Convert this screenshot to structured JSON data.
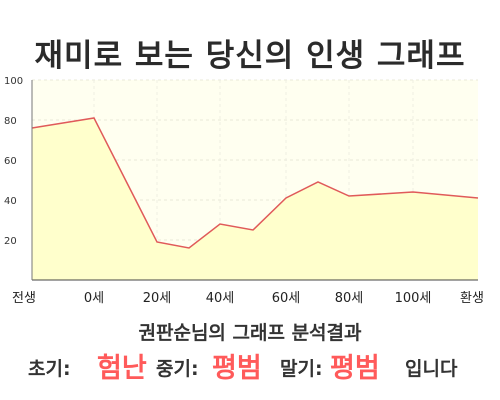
{
  "title": "재미로 보는 당신의 인생 그래프",
  "chart_data": {
    "type": "area",
    "x_categories": [
      "전생",
      "0세",
      "20세",
      "40세",
      "60세",
      "80세",
      "100세",
      "환생"
    ],
    "points": [
      {
        "x": "전생",
        "y": 76
      },
      {
        "x": "0세",
        "y": 81
      },
      {
        "x": "20세",
        "y": 19
      },
      {
        "x": "30세",
        "y": 16
      },
      {
        "x": "40세",
        "y": 28
      },
      {
        "x": "50세",
        "y": 25
      },
      {
        "x": "60세",
        "y": 41
      },
      {
        "x": "70세",
        "y": 49
      },
      {
        "x": "80세",
        "y": 42
      },
      {
        "x": "100세",
        "y": 44
      },
      {
        "x": "환생",
        "y": 41
      }
    ],
    "yticks": [
      20,
      40,
      60,
      80,
      100
    ],
    "ylim": [
      0,
      100
    ],
    "grid": true,
    "line_color": "#e05a5a",
    "fill_color": "#ffffcc"
  },
  "summary": "권판순님의 그래프 분석결과",
  "result": {
    "early_label": "초기:",
    "early_value": "험난",
    "mid_label": "중기:",
    "mid_value": "평범",
    "late_label": "말기:",
    "late_value": "평범",
    "ending": "입니다"
  }
}
